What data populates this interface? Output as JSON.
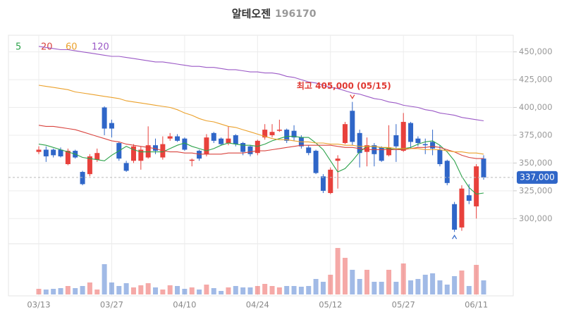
{
  "chart_data": {
    "type": "candlestick",
    "title": "알테오젠",
    "subtitle": "196170",
    "categories": [
      "03/13",
      null,
      null,
      null,
      null,
      null,
      null,
      null,
      null,
      null,
      "03/27",
      null,
      null,
      null,
      null,
      null,
      null,
      null,
      null,
      null,
      "04/10",
      null,
      null,
      null,
      null,
      null,
      null,
      null,
      null,
      null,
      "04/24",
      null,
      null,
      null,
      null,
      null,
      null,
      null,
      null,
      null,
      "05/12",
      null,
      null,
      null,
      null,
      null,
      null,
      null,
      null,
      null,
      "05/27",
      null,
      null,
      null,
      null,
      null,
      null,
      null,
      null,
      null,
      "06/11",
      null
    ],
    "open": [
      360000,
      362000,
      362000,
      362000,
      349000,
      361000,
      342000,
      340000,
      353000,
      400000,
      386000,
      368000,
      350000,
      352000,
      352000,
      355000,
      366000,
      355000,
      372000,
      374000,
      372000,
      352000,
      361000,
      358000,
      377000,
      372000,
      368000,
      375000,
      368000,
      365000,
      359000,
      373000,
      375000,
      379000,
      380000,
      379000,
      373000,
      364000,
      361000,
      338000,
      323000,
      352000,
      368000,
      397000,
      377000,
      360000,
      366000,
      364000,
      357000,
      375000,
      361000,
      386000,
      372000,
      367000,
      369000,
      362000,
      352000,
      313000,
      292000,
      321000,
      311000,
      354000
    ],
    "high": [
      365000,
      365000,
      363000,
      364000,
      363000,
      362000,
      343000,
      358000,
      363000,
      401000,
      389000,
      369000,
      352000,
      367000,
      365000,
      383000,
      372000,
      374000,
      377000,
      376000,
      373000,
      354000,
      362000,
      376000,
      378000,
      373000,
      383000,
      376000,
      369000,
      366000,
      371000,
      385000,
      385000,
      389000,
      381000,
      384000,
      375000,
      366000,
      362000,
      340000,
      346000,
      357000,
      387000,
      405000,
      380000,
      373000,
      368000,
      365000,
      384000,
      385000,
      395000,
      387000,
      374000,
      372000,
      380000,
      366000,
      353000,
      315000,
      330000,
      331000,
      349000,
      357000
    ],
    "low": [
      358000,
      351000,
      355000,
      355000,
      348000,
      354000,
      330000,
      338000,
      351000,
      375000,
      373000,
      352000,
      342000,
      350000,
      344000,
      354000,
      358000,
      353000,
      370000,
      369000,
      361000,
      347000,
      352000,
      356000,
      368000,
      366000,
      366000,
      365000,
      357000,
      356000,
      357000,
      371000,
      373000,
      378000,
      368000,
      370000,
      363000,
      357000,
      340000,
      323000,
      322000,
      327000,
      367000,
      366000,
      346000,
      347000,
      347000,
      351000,
      356000,
      351000,
      360000,
      363000,
      365000,
      358000,
      357000,
      347000,
      330000,
      288000,
      289000,
      313000,
      300000,
      335000
    ],
    "close": [
      362000,
      356000,
      357000,
      356000,
      361000,
      355000,
      331000,
      356000,
      359000,
      381000,
      381000,
      354000,
      343000,
      365000,
      362000,
      366000,
      361000,
      367000,
      374000,
      370000,
      362000,
      353000,
      354000,
      373000,
      370000,
      367000,
      372000,
      367000,
      360000,
      358000,
      370000,
      380000,
      378000,
      380000,
      370000,
      373000,
      365000,
      359000,
      341000,
      325000,
      344000,
      354000,
      385000,
      369000,
      359000,
      366000,
      358000,
      352000,
      364000,
      365000,
      387000,
      369000,
      368000,
      366000,
      363000,
      349000,
      332000,
      290000,
      327000,
      316000,
      347000,
      337000
    ],
    "volumes": [
      8,
      7,
      8,
      9,
      12,
      9,
      12,
      17,
      7,
      43,
      17,
      12,
      16,
      10,
      13,
      16,
      10,
      7,
      13,
      12,
      8,
      10,
      7,
      14,
      9,
      5,
      10,
      12,
      10,
      10,
      12,
      15,
      12,
      10,
      12,
      12,
      11,
      12,
      22,
      18,
      28,
      66,
      52,
      35,
      22,
      35,
      18,
      18,
      35,
      18,
      44,
      20,
      22,
      28,
      30,
      20,
      14,
      26,
      34,
      12,
      42,
      20
    ],
    "up_color": "#e8413c",
    "down_color": "#2f66c8",
    "series": [
      {
        "name": "5",
        "color": "#2ca24a",
        "values": [
          367000,
          366000,
          364000,
          362000,
          360000,
          358000,
          355000,
          354000,
          353000,
          352000,
          357000,
          361000,
          365000,
          362000,
          360000,
          360000,
          360000,
          360000,
          363000,
          366000,
          368000,
          365000,
          363000,
          361000,
          363000,
          366000,
          368000,
          367000,
          366000,
          366000,
          365000,
          367000,
          370000,
          372000,
          374000,
          374000,
          373000,
          373000,
          368000,
          362000,
          352000,
          342000,
          345000,
          352000,
          360000,
          365000,
          365000,
          364000,
          363000,
          362000,
          363000,
          364000,
          367000,
          369000,
          370000,
          366000,
          360000,
          352000,
          338000,
          328000,
          322000,
          323000
        ]
      },
      {
        "name": "20",
        "color": "#d9443f",
        "values": [
          384000,
          383000,
          383000,
          382000,
          381000,
          380000,
          378000,
          376000,
          374000,
          372000,
          370000,
          369000,
          367000,
          366000,
          365000,
          364000,
          363000,
          361000,
          360000,
          360000,
          359000,
          359000,
          358000,
          358000,
          358000,
          358000,
          359000,
          359000,
          359000,
          360000,
          361000,
          361000,
          362000,
          363000,
          364000,
          365000,
          366000,
          366000,
          366000,
          366000,
          366000,
          365000,
          364000,
          364000,
          363000,
          362000,
          362000,
          362000,
          362000,
          362000,
          362000,
          363000,
          364000,
          364000,
          365000,
          364000,
          362000,
          360000,
          357000,
          355000,
          354000,
          354000
        ]
      },
      {
        "name": "60",
        "color": "#eba12b",
        "values": [
          420000,
          419000,
          418000,
          417000,
          416000,
          414000,
          413000,
          412000,
          411000,
          410000,
          409000,
          408000,
          406000,
          405000,
          404000,
          403000,
          402000,
          401000,
          400000,
          398000,
          395000,
          393000,
          390000,
          388000,
          387000,
          385000,
          383000,
          382000,
          380000,
          378000,
          376000,
          374000,
          372000,
          371000,
          371000,
          370000,
          369000,
          369000,
          368000,
          368000,
          367000,
          367000,
          366000,
          366000,
          365000,
          365000,
          365000,
          364000,
          364000,
          363000,
          363000,
          363000,
          363000,
          362000,
          362000,
          362000,
          361000,
          360000,
          360000,
          359000,
          359000,
          358000
        ]
      },
      {
        "name": "120",
        "color": "#9b59c6",
        "values": [
          455000,
          454000,
          453000,
          452000,
          452000,
          451000,
          450000,
          449000,
          448000,
          447000,
          446000,
          446000,
          445000,
          444000,
          443000,
          442000,
          441000,
          441000,
          440000,
          439000,
          438000,
          437000,
          437000,
          436000,
          436000,
          435000,
          434000,
          434000,
          433000,
          432000,
          432000,
          431000,
          431000,
          430000,
          428000,
          427000,
          425000,
          423000,
          422000,
          420000,
          418000,
          417000,
          415000,
          413000,
          412000,
          410000,
          408000,
          407000,
          405000,
          404000,
          402000,
          401000,
          400000,
          398000,
          397000,
          395000,
          394000,
          393000,
          391000,
          390000,
          389000,
          388000
        ]
      }
    ],
    "ylim": [
      278000,
      465000
    ],
    "yticks": [
      {
        "value": 300000,
        "label": "300,000"
      },
      {
        "value": 325000,
        "label": "325,000"
      },
      {
        "value": 350000,
        "label": "350,000"
      },
      {
        "value": 375000,
        "label": "375,000"
      },
      {
        "value": 400000,
        "label": "400,000"
      },
      {
        "value": 425000,
        "label": "425,000"
      },
      {
        "value": 450000,
        "label": "450,000"
      }
    ],
    "grid": true,
    "current": {
      "value": 337000,
      "label": "337,000"
    },
    "annotation": "최고 405,000 (05/15)"
  }
}
